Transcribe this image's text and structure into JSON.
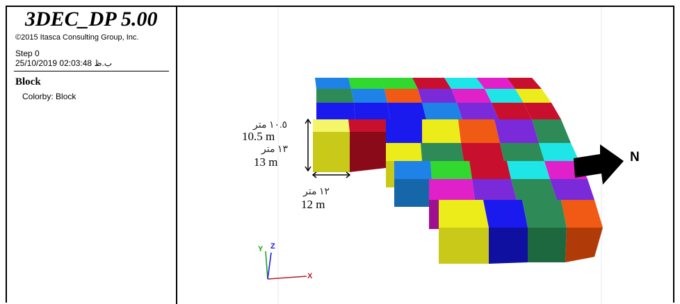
{
  "legend": {
    "app_title": "3DEC_DP 5.00",
    "copyright": "©2015 Itasca Consulting Group, Inc.",
    "step": "Step 0",
    "datetime": "25/10/2019 02:03:48 ب.ظ",
    "plot_item": "Block",
    "colorby": "Colorby: Block"
  },
  "annotations": {
    "height_ar": "١٠.٥ متر",
    "height_en": "10.5 m",
    "depth_ar": "١٣ متر",
    "depth_en": "13 m",
    "width_ar": "١٢ متر",
    "width_en": "12 m"
  },
  "north_label": "N",
  "axes": {
    "x": "X",
    "y": "Y",
    "z": "Z"
  },
  "colors": {
    "blue": "#1a1aee",
    "green": "#2e8b57",
    "yellow": "#ecec1a",
    "red": "#c8102e",
    "cyan": "#1ee6e6",
    "magenta": "#e020c8",
    "lime": "#30d830",
    "orange": "#f05a14",
    "purple": "#7a2ad8",
    "sky": "#1e82e6",
    "darkred": "#9e0a1c",
    "north_arrow": "#000000",
    "axis_x": "#b0202a",
    "axis_y": "#18a018",
    "axis_z": "#1a1aee"
  },
  "icons": {
    "north_arrow": "arrow-right-icon",
    "axes_triad": "axes-triad-icon"
  }
}
